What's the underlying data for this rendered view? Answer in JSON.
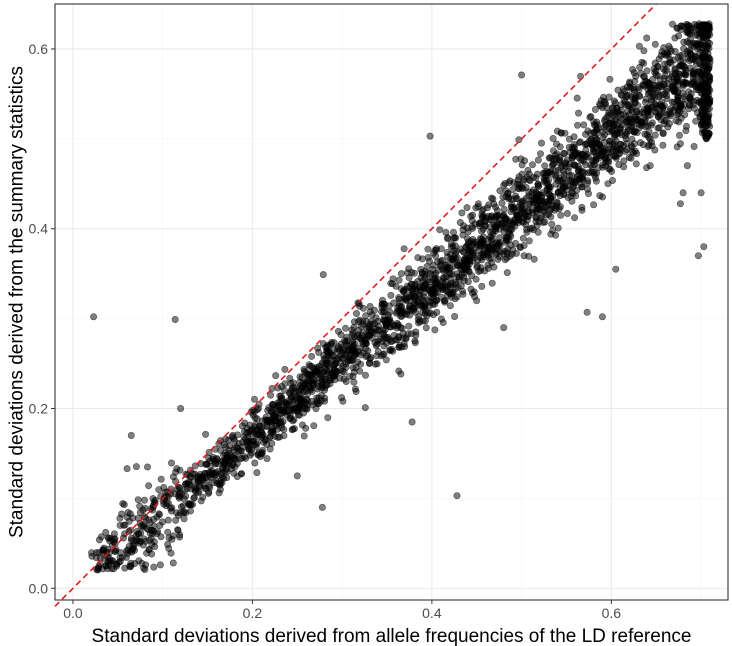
{
  "chart_data": {
    "type": "scatter",
    "title": "",
    "xlabel": "Standard deviations derived from allele frequencies of the LD reference",
    "ylabel": "Standard deviations derived from the summary statistics",
    "xlim": [
      -0.02,
      0.73
    ],
    "ylim": [
      -0.013,
      0.65
    ],
    "x_ticks": [
      {
        "value": 0.0,
        "label": "0.0"
      },
      {
        "value": 0.2,
        "label": "0.2"
      },
      {
        "value": 0.4,
        "label": "0.4"
      },
      {
        "value": 0.6,
        "label": "0.6"
      }
    ],
    "y_ticks": [
      {
        "value": 0.0,
        "label": "0.0"
      },
      {
        "value": 0.2,
        "label": "0.2"
      },
      {
        "value": 0.4,
        "label": "0.4"
      },
      {
        "value": 0.6,
        "label": "0.6"
      }
    ],
    "grid": true,
    "reference_line": {
      "slope": 1,
      "intercept": 0,
      "style": "dashed",
      "color": "#e41a1c"
    },
    "point_color": "#000000",
    "point_opacity": 0.5,
    "trend": {
      "slope": 0.84,
      "intercept": 0.0,
      "spread": 0.02,
      "x_range": [
        0.02,
        0.71
      ]
    },
    "outliers": [
      {
        "x": 0.023,
        "y": 0.302
      },
      {
        "x": 0.114,
        "y": 0.299
      },
      {
        "x": 0.398,
        "y": 0.503
      },
      {
        "x": 0.5,
        "y": 0.571
      },
      {
        "x": 0.428,
        "y": 0.103
      },
      {
        "x": 0.278,
        "y": 0.09
      },
      {
        "x": 0.378,
        "y": 0.185
      },
      {
        "x": 0.279,
        "y": 0.349
      },
      {
        "x": 0.573,
        "y": 0.307
      },
      {
        "x": 0.605,
        "y": 0.355
      },
      {
        "x": 0.697,
        "y": 0.37
      },
      {
        "x": 0.703,
        "y": 0.38
      },
      {
        "x": 0.68,
        "y": 0.44
      },
      {
        "x": 0.7,
        "y": 0.44
      },
      {
        "x": 0.12,
        "y": 0.2
      },
      {
        "x": 0.065,
        "y": 0.17
      },
      {
        "x": 0.59,
        "y": 0.302
      },
      {
        "x": 0.48,
        "y": 0.29
      },
      {
        "x": 0.45,
        "y": 0.32
      },
      {
        "x": 0.25,
        "y": 0.125
      }
    ],
    "colors": {
      "panel_border": "#333333",
      "grid_major": "#ebebeb",
      "grid_minor": "#f5f5f5",
      "tick_label": "#4d4d4d"
    }
  }
}
